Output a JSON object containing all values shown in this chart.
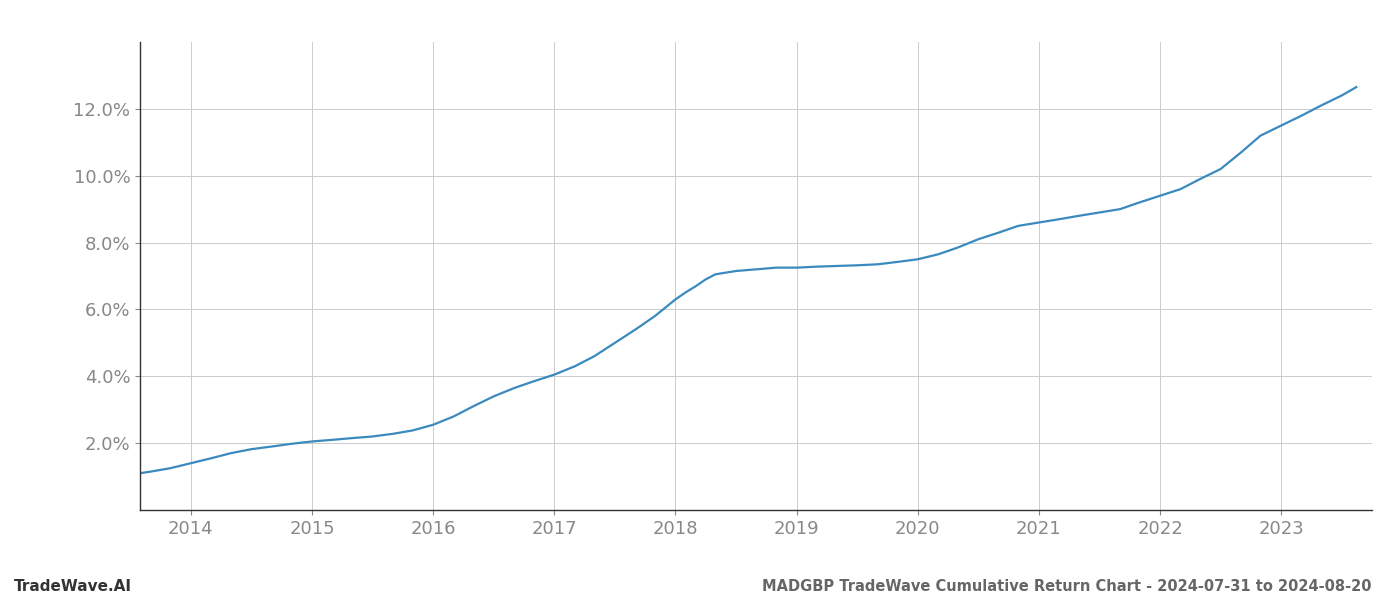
{
  "title": "MADGBP TradeWave Cumulative Return Chart - 2024-07-31 to 2024-08-20",
  "watermark": "TradeWave.AI",
  "line_color": "#3a8abf",
  "background_color": "#ffffff",
  "grid_color": "#cccccc",
  "x_years": [
    2014,
    2015,
    2016,
    2017,
    2018,
    2019,
    2020,
    2021,
    2022,
    2023
  ],
  "x_data": [
    2013.58,
    2013.67,
    2013.83,
    2014.0,
    2014.17,
    2014.33,
    2014.5,
    2014.67,
    2014.83,
    2015.0,
    2015.17,
    2015.33,
    2015.5,
    2015.67,
    2015.83,
    2016.0,
    2016.17,
    2016.33,
    2016.5,
    2016.67,
    2016.83,
    2017.0,
    2017.17,
    2017.33,
    2017.5,
    2017.67,
    2017.83,
    2018.0,
    2018.08,
    2018.17,
    2018.25,
    2018.33,
    2018.5,
    2018.67,
    2018.83,
    2019.0,
    2019.17,
    2019.33,
    2019.5,
    2019.67,
    2019.83,
    2020.0,
    2020.17,
    2020.33,
    2020.5,
    2020.67,
    2020.83,
    2021.0,
    2021.17,
    2021.33,
    2021.5,
    2021.67,
    2021.83,
    2022.0,
    2022.17,
    2022.33,
    2022.5,
    2022.67,
    2022.83,
    2023.0,
    2023.17,
    2023.33,
    2023.5,
    2023.62
  ],
  "y_data": [
    1.1,
    1.15,
    1.25,
    1.4,
    1.55,
    1.7,
    1.82,
    1.9,
    1.98,
    2.05,
    2.1,
    2.15,
    2.2,
    2.28,
    2.38,
    2.55,
    2.8,
    3.1,
    3.4,
    3.65,
    3.85,
    4.05,
    4.3,
    4.6,
    5.0,
    5.4,
    5.8,
    6.3,
    6.5,
    6.7,
    6.9,
    7.05,
    7.15,
    7.2,
    7.25,
    7.25,
    7.28,
    7.3,
    7.32,
    7.35,
    7.42,
    7.5,
    7.65,
    7.85,
    8.1,
    8.3,
    8.5,
    8.6,
    8.7,
    8.8,
    8.9,
    9.0,
    9.2,
    9.4,
    9.6,
    9.9,
    10.2,
    10.7,
    11.2,
    11.5,
    11.8,
    12.1,
    12.4,
    12.65
  ],
  "ylim": [
    0,
    14
  ],
  "yticks": [
    2.0,
    4.0,
    6.0,
    8.0,
    10.0,
    12.0
  ],
  "xlim": [
    2013.58,
    2023.75
  ],
  "title_color": "#666666",
  "watermark_color": "#333333",
  "tick_color": "#888888",
  "spine_color": "#333333",
  "title_fontsize": 10.5,
  "watermark_fontsize": 11,
  "tick_fontsize": 13,
  "line_width": 1.6
}
